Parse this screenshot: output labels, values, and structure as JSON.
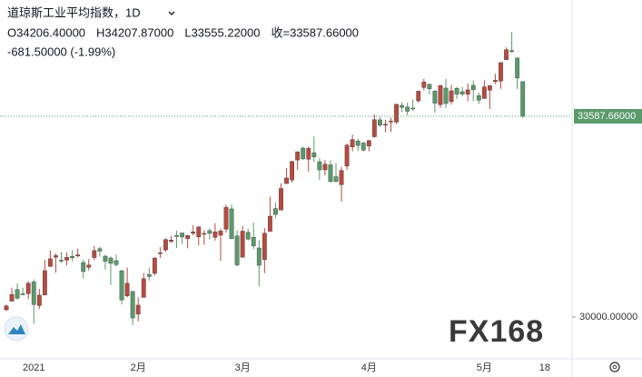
{
  "chart_data": {
    "type": "candlestick",
    "title": "道琼斯工业平均指数，1D",
    "ohlc_labels": [
      "O34206.40000",
      "H34207.87000",
      "L33555.22000",
      "收=33587.66000"
    ],
    "change_label": "-681.50000 (-1.99%)",
    "watermark": "FX168",
    "up_color": "#b84a3f",
    "down_color": "#5a9a6b",
    "ylim": [
      29253,
      35665
    ],
    "yticks": [
      {
        "value": 30000,
        "label": "30000.00000"
      }
    ],
    "last_price": {
      "value": 33587.66,
      "label": "33587.66000"
    },
    "categories": [
      null,
      null,
      null,
      null,
      null,
      "2021",
      null,
      null,
      null,
      null,
      null,
      null,
      null,
      null,
      null,
      null,
      null,
      null,
      null,
      null,
      null,
      null,
      null,
      null,
      "2月",
      null,
      null,
      null,
      null,
      null,
      null,
      null,
      null,
      null,
      null,
      null,
      null,
      null,
      null,
      null,
      null,
      null,
      null,
      "3月",
      null,
      null,
      null,
      null,
      null,
      null,
      null,
      null,
      null,
      null,
      null,
      null,
      null,
      null,
      null,
      null,
      null,
      null,
      null,
      null,
      null,
      null,
      "4月",
      null,
      null,
      null,
      null,
      null,
      null,
      null,
      null,
      null,
      null,
      null,
      null,
      null,
      null,
      null,
      null,
      null,
      null,
      null,
      null,
      "5月",
      null,
      null,
      null,
      null,
      null,
      null,
      null,
      null,
      null,
      null,
      "18"
    ],
    "open": [
      30130,
      30283,
      30492,
      30415,
      30418,
      30627,
      30204,
      30393,
      30904,
      31069,
      31016,
      31016,
      31085,
      31090,
      30974,
      30887,
      31062,
      31220,
      31088,
      31055,
      31007,
      30827,
      30378,
      30460,
      30054,
      30350,
      30763,
      30780,
      31145,
      31199,
      31352,
      31459,
      31502,
      31399,
      31497,
      31432,
      31491,
      31544,
      31423,
      31461,
      31569,
      31932,
      31450,
      31066,
      31512,
      31424,
      31234,
      31025,
      31532,
      31938,
      31912,
      32385,
      32449,
      32806,
      33019,
      32819,
      32936,
      32775,
      32630,
      32720,
      32508,
      32364,
      32697,
      33039,
      33145,
      33109,
      33054,
      33222,
      33523,
      33433,
      33503,
      33484,
      33782,
      33753,
      33734,
      33863,
      34102,
      34158,
      34039,
      33794,
      34091,
      33848,
      34087,
      34027,
      33982,
      34140,
      33958,
      33904,
      34055,
      34206,
      34217,
      34597,
      34760,
      34630,
      34206.4,
      null,
      null,
      null,
      null
    ],
    "high": [
      30225,
      30525,
      30600,
      30525,
      30637,
      30674,
      30504,
      31022,
      31194,
      31140,
      31164,
      31154,
      31198,
      31223,
      31023,
      31035,
      31272,
      31258,
      31107,
      31083,
      31116,
      30842,
      30886,
      30460,
      30352,
      30788,
      30878,
      31067,
      31249,
      31409,
      31447,
      31543,
      31502,
      31460,
      31643,
      31613,
      31548,
      31588,
      31676,
      31580,
      32009,
      32010,
      31548,
      31628,
      31581,
      31686,
      31374,
      31589,
      32150,
      32048,
      32389,
      32661,
      32793,
      32960,
      33047,
      33048,
      33227,
      32842,
      32804,
      32800,
      32756,
      32682,
      33098,
      33259,
      33186,
      33133,
      33168,
      33618,
      33575,
      33523,
      33563,
      33810,
      33836,
      33830,
      33893,
      34046,
      34256,
      34172,
      34053,
      34153,
      34255,
      34146,
      34114,
      34113,
      34175,
      34229,
      34009,
      34232,
      34150,
      34345,
      34550,
      34817,
      35091,
      34630,
      34207.87,
      null,
      null,
      null,
      null
    ],
    "low": [
      30110,
      30283,
      30310,
      30388,
      30323,
      29882,
      30141,
      30393,
      30897,
      30793,
      30964,
      30922,
      30994,
      31064,
      30687,
      30831,
      31018,
      31080,
      30845,
      30571,
      30904,
      30227,
      30354,
      29856,
      29922,
      30350,
      30649,
      30743,
      31056,
      31167,
      31322,
      31233,
      31305,
      31227,
      31457,
      31277,
      31292,
      31386,
      31366,
      31002,
      31508,
      31390,
      30903,
      31066,
      31372,
      31213,
      30547,
      30784,
      31532,
      31766,
      31912,
      32385,
      32402,
      32630,
      32808,
      32600,
      32766,
      32452,
      32528,
      32400,
      32412,
      32064,
      32631,
      32961,
      32965,
      32958,
      32961,
      33203,
      33394,
      33299,
      33309,
      33450,
      33665,
      33604,
      33681,
      33830,
      34051,
      33975,
      33653,
      33737,
      33734,
      33794,
      33895,
      33946,
      33857,
      33857,
      33809,
      33904,
      33718,
      34163,
      34078,
      34597,
      34724,
      34073,
      33555.22,
      null,
      null,
      null,
      null
    ],
    "close": [
      30199,
      30404,
      30335,
      30409,
      30606,
      30223,
      30392,
      30829,
      31041,
      31097,
      31008,
      31068,
      31060,
      31112,
      30814,
      30930,
      31188,
      31176,
      30997,
      30960,
      30937,
      30303,
      30603,
      29983,
      30212,
      30687,
      30724,
      31055,
      31148,
      31385,
      31375,
      31438,
      31430,
      31458,
      31523,
      31613,
      31494,
      31494,
      31521,
      31537,
      31962,
      31402,
      30932,
      31535,
      31391,
      31270,
      30924,
      31496,
      31802,
      31833,
      32297,
      32485,
      32779,
      32953,
      32826,
      33015,
      32862,
      32628,
      32731,
      32423,
      32420,
      32619,
      33072,
      33171,
      33067,
      32982,
      33153,
      33527,
      33430,
      33446,
      33503,
      33801,
      33746,
      33677,
      33730,
      34036,
      34200,
      34078,
      33821,
      34137,
      33815,
      34043,
      33981,
      33984,
      34060,
      34060,
      33875,
      34113,
      34133,
      34230,
      34548,
      34778,
      34742,
      34270,
      33587.66,
      null,
      null,
      null,
      null
    ]
  }
}
